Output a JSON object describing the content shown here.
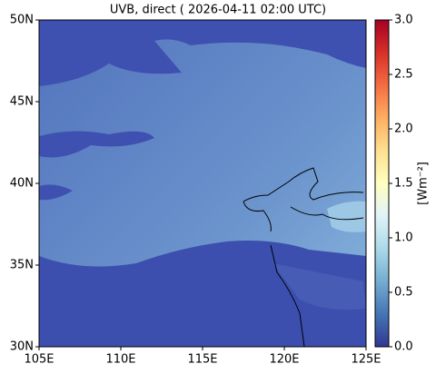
{
  "chart_data": {
    "type": "map",
    "title": "UVB, direct ( 2026-04-11 02:00 UTC)",
    "colorbar_label": "[Wm⁻²]",
    "xlim": [
      105,
      125
    ],
    "xticks": [
      {
        "value": 105,
        "label": "105E"
      },
      {
        "value": 110,
        "label": "110E"
      },
      {
        "value": 115,
        "label": "115E"
      },
      {
        "value": 120,
        "label": "120E"
      },
      {
        "value": 125,
        "label": "125E"
      }
    ],
    "ylim": [
      30,
      50
    ],
    "yticks": [
      {
        "value": 30,
        "label": "30N"
      },
      {
        "value": 35,
        "label": "35N"
      },
      {
        "value": 40,
        "label": "40N"
      },
      {
        "value": 45,
        "label": "45N"
      },
      {
        "value": 50,
        "label": "50N"
      }
    ],
    "clim": [
      0,
      3
    ],
    "cticks": [
      {
        "value": 0,
        "label": "0.0"
      },
      0.5,
      {
        "value": 1,
        "label": "1.0"
      },
      1.5,
      {
        "value": 2,
        "label": "2.0"
      },
      2.5,
      {
        "value": 3,
        "label": "3.0"
      }
    ]
  }
}
